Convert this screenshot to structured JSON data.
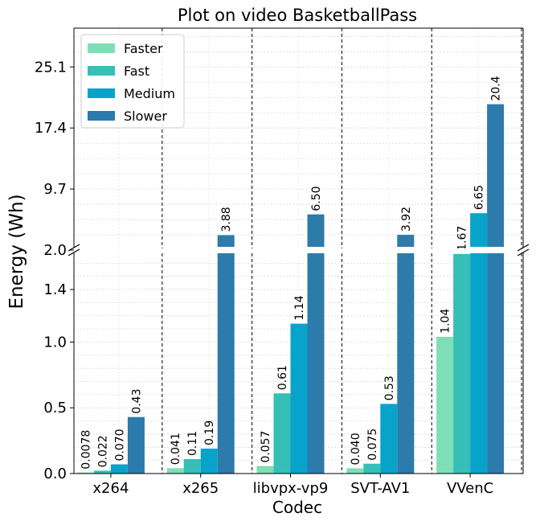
{
  "chart_data": {
    "type": "bar",
    "title": "Plot on video BasketballPass",
    "xlabel": "Codec",
    "ylabel": "Energy (Wh)",
    "categories": [
      "x264",
      "x265",
      "libvpx-vp9",
      "SVT-AV1",
      "VVenC"
    ],
    "series": [
      {
        "name": "Faster",
        "color": "#7fdeb5",
        "values": [
          0.0078,
          0.041,
          0.057,
          0.04,
          1.04
        ],
        "labels": [
          "0.0078",
          "0.041",
          "0.057",
          "0.040",
          "1.04"
        ]
      },
      {
        "name": "Fast",
        "color": "#35bfb6",
        "values": [
          0.022,
          0.11,
          0.61,
          0.075,
          1.67
        ],
        "labels": [
          "0.022",
          "0.11",
          "0.61",
          "0.075",
          "1.67"
        ]
      },
      {
        "name": "Medium",
        "color": "#08a3ca",
        "values": [
          0.07,
          0.19,
          1.14,
          0.53,
          6.65
        ],
        "labels": [
          "0.070",
          "0.19",
          "1.14",
          "0.53",
          "6.65"
        ]
      },
      {
        "name": "Slower",
        "color": "#2c7bab",
        "values": [
          0.43,
          3.88,
          6.5,
          3.92,
          20.4
        ],
        "labels": [
          "0.43",
          "3.88",
          "6.50",
          "3.92",
          "20.4"
        ]
      }
    ],
    "broken_axis": true,
    "lower_ylim": [
      0,
      1.7
    ],
    "upper_ylim": [
      2.0,
      30
    ],
    "lower_ticks": [
      "0.0",
      "0.5",
      "1.0",
      "1.4"
    ],
    "upper_ticks": [
      "2.0",
      "9.7",
      "17.4",
      "25.1"
    ],
    "grid": true,
    "legend_position": "upper-left"
  }
}
